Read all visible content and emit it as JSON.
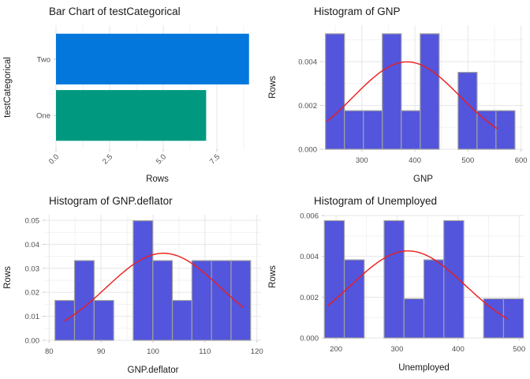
{
  "style": {
    "background": "#ffffff",
    "grid_major_color": "#e6e6e6",
    "grid_minor_color": "#f2f2f2",
    "hist_fill": "#5355dd",
    "hist_stroke": "#a0a0a0",
    "curve_color": "#ed1c1c",
    "axis_tick_color": "#c9c9c9",
    "tick_label_color": "#4d4d4d",
    "title_color": "#1a1a1a",
    "axis_title_color": "#1a1a1a"
  },
  "chart_data": [
    {
      "name": "bar-testcategorical",
      "type": "bar",
      "orientation": "horizontal",
      "title": "Bar Chart of testCategorical",
      "xlabel": "Rows",
      "ylabel": "testCategorical",
      "categories": [
        "One",
        "Two"
      ],
      "values": [
        7,
        9
      ],
      "bar_colors": [
        "#009980",
        "#0477dd"
      ],
      "xlim": [
        0,
        9.45
      ],
      "x_ticks": [
        0,
        2.5,
        5,
        7.5
      ],
      "x_tick_labels": [
        "0.0",
        "2.5",
        "5.0",
        "7.5"
      ],
      "x_minor": [
        1.25,
        3.75,
        6.25,
        8.75
      ],
      "x_labels_rotated": true,
      "grid": "vertical-only",
      "panel": {
        "l": 71,
        "r": 328,
        "t": 32,
        "b": 189
      }
    },
    {
      "name": "hist-gnp",
      "type": "histogram",
      "title": "Histogram of GNP",
      "xlabel": "GNP",
      "ylabel": "Rows",
      "bin_start": 231.5,
      "bin_width": 35.7,
      "bin_densities": [
        0.00527,
        0.00176,
        0.00176,
        0.00527,
        0.00176,
        0.00527,
        0,
        0.00351,
        0.00176,
        0.00176
      ],
      "curve": {
        "type": "normal-density",
        "mean": 385,
        "sd": 100,
        "x_from": 234.3,
        "x_to": 554.9
      },
      "xlim": [
        226,
        605
      ],
      "ylim": [
        0,
        0.00566
      ],
      "x_ticks": [
        300,
        400,
        500,
        600
      ],
      "x_tick_labels": [
        "300",
        "400",
        "500",
        "600"
      ],
      "x_minor": [
        250,
        350,
        450,
        550
      ],
      "y_ticks": [
        0,
        0.002,
        0.004
      ],
      "y_tick_labels": [
        "0.000",
        "0.002",
        "0.004"
      ],
      "y_minor": [
        0.001,
        0.003,
        0.005
      ],
      "grid": "both",
      "panel": {
        "l": 73,
        "r": 328,
        "t": 32,
        "b": 189
      }
    },
    {
      "name": "hist-gnp-deflator",
      "type": "histogram",
      "title": "Histogram of GNP.deflator",
      "xlabel": "GNP.deflator",
      "ylabel": "Rows",
      "bin_start": 81.13,
      "bin_width": 3.766,
      "bin_densities": [
        0.0166,
        0.0332,
        0.0166,
        0,
        0.0498,
        0.0332,
        0.0166,
        0.0332,
        0.0332,
        0.0332
      ],
      "curve": {
        "type": "normal-density",
        "mean": 102,
        "sd": 11,
        "x_from": 83.0,
        "x_to": 117.3
      },
      "xlim": [
        79.2,
        120.8
      ],
      "ylim": [
        0,
        0.0523
      ],
      "x_ticks": [
        80,
        90,
        100,
        110,
        120
      ],
      "x_tick_labels": [
        "80",
        "90",
        "100",
        "110",
        "120"
      ],
      "x_minor": [
        85,
        95,
        105,
        115
      ],
      "y_ticks": [
        0,
        0.01,
        0.02,
        0.03,
        0.04,
        0.05
      ],
      "y_tick_labels": [
        "0.00",
        "0.01",
        "0.02",
        "0.03",
        "0.04",
        "0.05"
      ],
      "y_minor": [
        0.005,
        0.015,
        0.025,
        0.035,
        0.045
      ],
      "grid": "both",
      "panel": {
        "l": 57,
        "r": 331,
        "t": 32,
        "b": 191
      }
    },
    {
      "name": "hist-unemployed",
      "type": "histogram",
      "title": "Histogram of Unemployed",
      "xlabel": "Unemployed",
      "ylabel": "Rows",
      "bin_start": 180.9,
      "bin_width": 32.62,
      "bin_densities": [
        0.00575,
        0.00383,
        0,
        0.00575,
        0.00192,
        0.00383,
        0.00575,
        0,
        0.00192,
        0.00192
      ],
      "curve": {
        "type": "normal-density",
        "mean": 318,
        "sd": 93.5,
        "x_from": 187.0,
        "x_to": 480.6
      },
      "xlim": [
        180.5,
        507.5
      ],
      "ylim": [
        0,
        0.006
      ],
      "x_ticks": [
        200,
        300,
        400,
        500
      ],
      "x_tick_labels": [
        "200",
        "300",
        "400",
        "500"
      ],
      "x_minor": [
        250,
        350,
        450
      ],
      "y_ticks": [
        0,
        0.002,
        0.004,
        0.006
      ],
      "y_tick_labels": [
        "0.000",
        "0.002",
        "0.004",
        "0.006"
      ],
      "y_minor": [
        0.001,
        0.003,
        0.005
      ],
      "grid": "both",
      "panel": {
        "l": 75,
        "r": 328,
        "t": 33,
        "b": 188
      }
    }
  ]
}
